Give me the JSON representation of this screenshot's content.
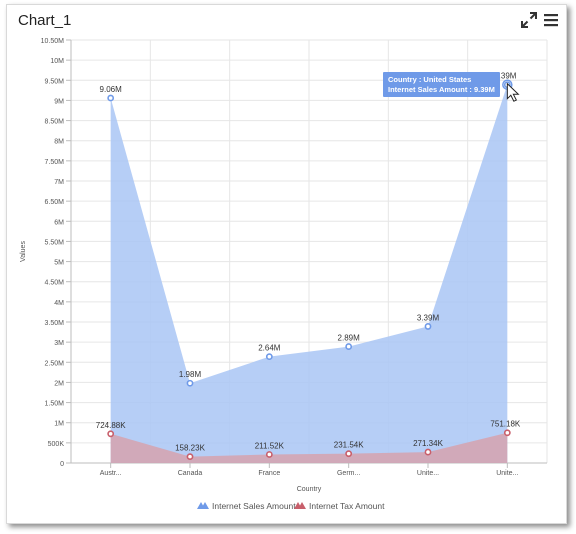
{
  "widget": {
    "title": "Chart_1",
    "toolbar": {
      "expand_icon": "expand-icon",
      "menu_icon": "hamburger-menu-icon"
    }
  },
  "chart_data": {
    "type": "area",
    "categories": [
      "Austr...",
      "Canada",
      "France",
      "Germ...",
      "Unite...",
      "Unite..."
    ],
    "series": [
      {
        "name": "Internet Sales Amount",
        "color": "#a9c5f5",
        "values": [
          9060000,
          1980000,
          2640000,
          2890000,
          3390000,
          9390000
        ],
        "labels": [
          "9.06M",
          "1.98M",
          "2.64M",
          "2.89M",
          "3.39M",
          "9.39M"
        ]
      },
      {
        "name": "Internet Tax Amount",
        "color": "#d4a5b2",
        "values": [
          724880,
          158230,
          211520,
          231540,
          271340,
          751180
        ],
        "labels": [
          "724.88K",
          "158.23K",
          "211.52K",
          "231.54K",
          "271.34K",
          "751.18K"
        ]
      }
    ],
    "ylim": [
      0,
      10500000
    ],
    "yticks": [
      0,
      500000,
      1000000,
      1500000,
      2000000,
      2500000,
      3000000,
      3500000,
      4000000,
      4500000,
      5000000,
      5500000,
      6000000,
      6500000,
      7000000,
      7500000,
      8000000,
      8500000,
      9000000,
      9500000,
      10000000,
      10500000
    ],
    "ytick_labels": [
      "0",
      "500K",
      "1M",
      "1.50M",
      "2M",
      "2.50M",
      "3M",
      "3.50M",
      "4M",
      "4.50M",
      "5M",
      "5.50M",
      "6M",
      "6.50M",
      "7M",
      "7.50M",
      "8M",
      "8.50M",
      "9M",
      "9.50M",
      "10M",
      "10.50M"
    ],
    "xlabel": "Country",
    "ylabel": "Values",
    "grid": true,
    "legend": "bottom",
    "tooltip": {
      "series_index": 0,
      "point_index": 5,
      "line1": "Country : United States",
      "line2": "Internet Sales Amount : 9.39M",
      "color": "#6f9ae8"
    }
  }
}
